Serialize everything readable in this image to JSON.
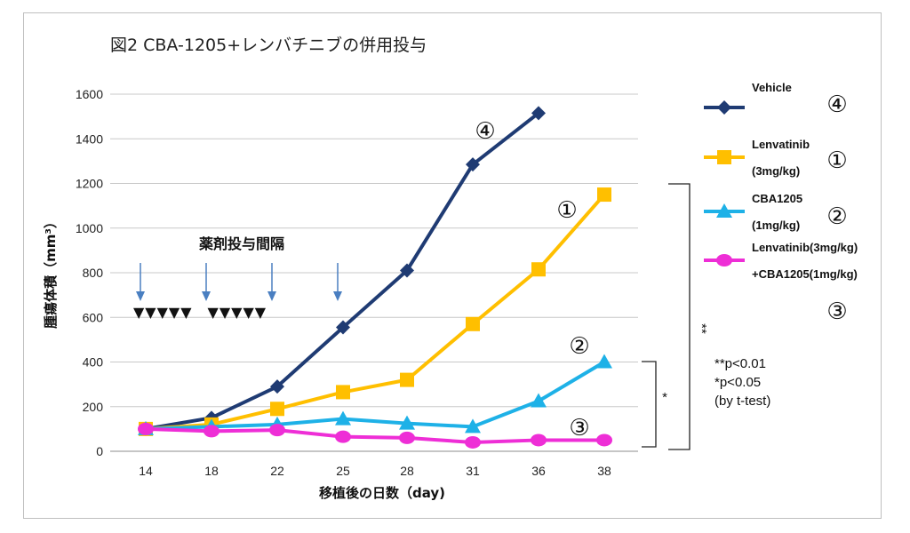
{
  "title": "図2  CBA-1205+レンバチニブの併用投与",
  "chart_data": {
    "type": "line",
    "categories": [
      "14",
      "18",
      "22",
      "25",
      "28",
      "31",
      "36",
      "38"
    ],
    "xlabel": "移植後の日数（day)",
    "ylabel": "腫瘍体積（mm³）",
    "ylim": [
      0,
      1600
    ],
    "yticks": [
      0,
      200,
      400,
      600,
      800,
      1000,
      1200,
      1400,
      1600
    ],
    "grid": true,
    "legend_position": "right",
    "series": [
      {
        "name": "Vehicle",
        "marker": "diamond",
        "color": "#1f3b73",
        "group": "④",
        "values": [
          100,
          150,
          290,
          555,
          810,
          1285,
          1515,
          null
        ]
      },
      {
        "name": "Lenvatinib (3mg/kg)",
        "marker": "square",
        "color": "#ffbf00",
        "group": "①",
        "values": [
          100,
          120,
          190,
          265,
          320,
          570,
          815,
          1150
        ]
      },
      {
        "name": "CBA1205 (1mg/kg)",
        "marker": "triangle",
        "color": "#1eb1e7",
        "group": "②",
        "values": [
          100,
          110,
          120,
          145,
          125,
          110,
          225,
          400
        ]
      },
      {
        "name": "Lenvatinib(3mg/kg) +CBA1205(1mg/kg)",
        "marker": "circle",
        "color": "#ee2ed6",
        "group": "③",
        "values": [
          100,
          90,
          95,
          65,
          60,
          40,
          50,
          50
        ]
      }
    ],
    "annotations": {
      "dosing_label": "薬剤投与間隔",
      "dosing_arrows_at": [
        "14",
        "18",
        "22",
        "25"
      ],
      "dosing_marks": "▼▼▼▼▼　▼▼▼▼▼",
      "significance": [
        "**",
        "*"
      ],
      "notes": [
        "**p<0.01",
        "*p<0.05",
        "(by t-test)"
      ]
    }
  },
  "legend": [
    {
      "lines": [
        "Vehicle"
      ],
      "group": "④"
    },
    {
      "lines": [
        "Lenvatinib",
        "(3mg/kg)"
      ],
      "group": "①"
    },
    {
      "lines": [
        "CBA1205",
        "(1mg/kg)"
      ],
      "group": "②"
    },
    {
      "lines": [
        "Lenvatinib(3mg/kg)",
        "+CBA1205(1mg/kg)"
      ],
      "group": "③"
    }
  ]
}
